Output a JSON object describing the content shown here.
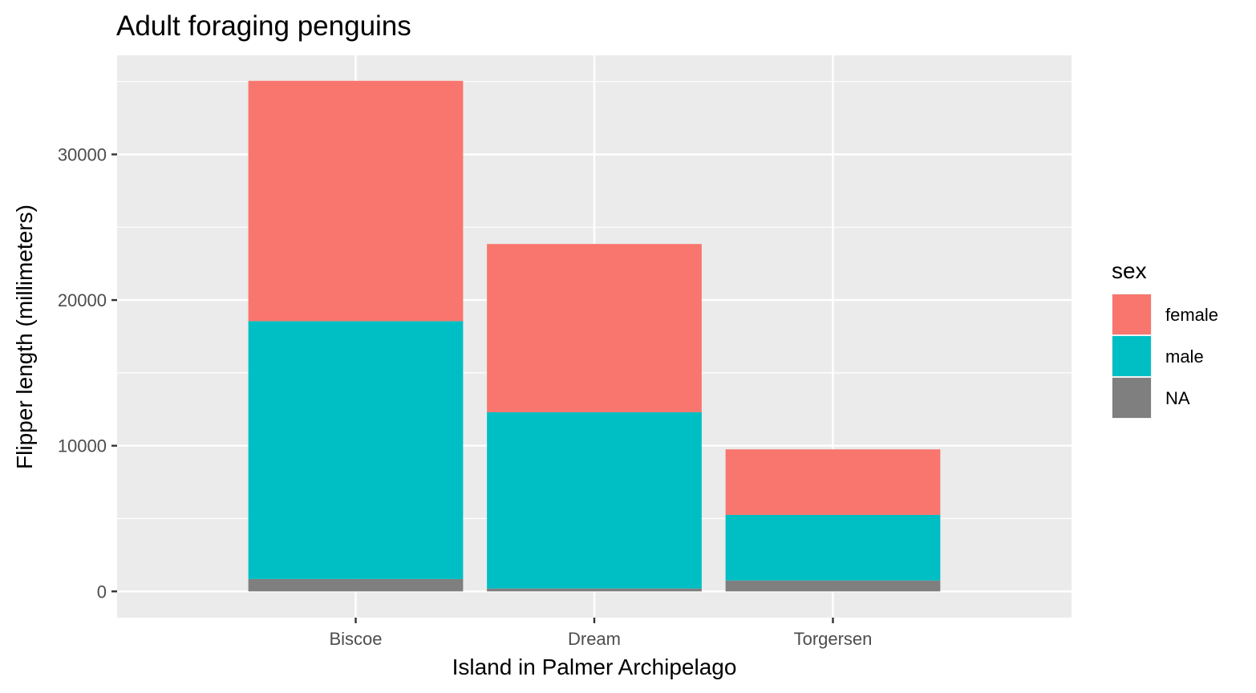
{
  "chart_data": {
    "type": "bar",
    "stacked": true,
    "title": "Adult foraging penguins",
    "xlabel": "Island in Palmer Archipelago",
    "ylabel": "Flipper length (millimeters)",
    "categories": [
      "Biscoe",
      "Dream",
      "Torgersen"
    ],
    "ylim": [
      -1800,
      36800
    ],
    "yticks": [
      0,
      10000,
      20000,
      30000
    ],
    "ytick_labels": [
      "0",
      "10000",
      "20000",
      "30000"
    ],
    "grid": true,
    "legend": {
      "title": "sex",
      "position": "right"
    },
    "series": [
      {
        "name": "female",
        "color": "#F8766D",
        "values": [
          16500,
          11550,
          4500
        ]
      },
      {
        "name": "male",
        "color": "#00BFC4",
        "values": [
          17700,
          12100,
          4500
        ]
      },
      {
        "name": "NA",
        "color": "#7F7F7F",
        "values": [
          850,
          200,
          750
        ]
      }
    ]
  }
}
